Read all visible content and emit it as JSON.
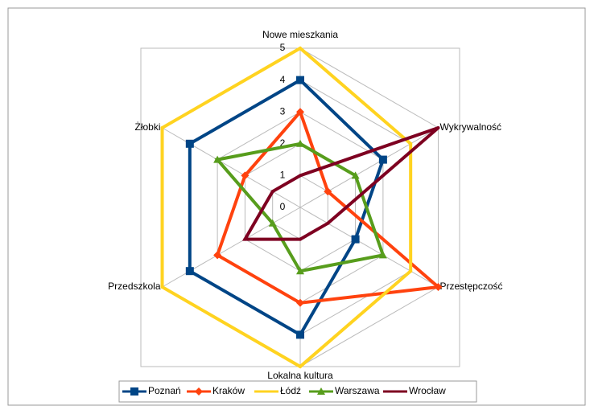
{
  "chart_data": {
    "type": "radar",
    "categories": [
      "Nowe mieszkania",
      "Wykrywalność",
      "Przestępczość",
      "Lokalna kultura",
      "Przedszkola",
      "Żłobki"
    ],
    "rlim": [
      0,
      5
    ],
    "rticks": [
      0,
      1,
      2,
      3,
      4,
      5
    ],
    "grid": true,
    "legend": "bottom",
    "series": [
      {
        "name": "Poznań",
        "color": "#004586",
        "marker": "square",
        "values": [
          4,
          3,
          2,
          4,
          4,
          4
        ]
      },
      {
        "name": "Kraków",
        "color": "#ff420e",
        "marker": "diamond",
        "values": [
          3,
          1,
          5,
          3,
          3,
          2
        ]
      },
      {
        "name": "Łódź",
        "color": "#ffd320",
        "marker": "none",
        "values": [
          5,
          4,
          4,
          5,
          5,
          5
        ]
      },
      {
        "name": "Warszawa",
        "color": "#579d1c",
        "marker": "triangle",
        "values": [
          2,
          2,
          3,
          2,
          1,
          3
        ]
      },
      {
        "name": "Wrocław",
        "color": "#7e0021",
        "marker": "none",
        "values": [
          1,
          5,
          1,
          1,
          2,
          1
        ]
      }
    ]
  }
}
